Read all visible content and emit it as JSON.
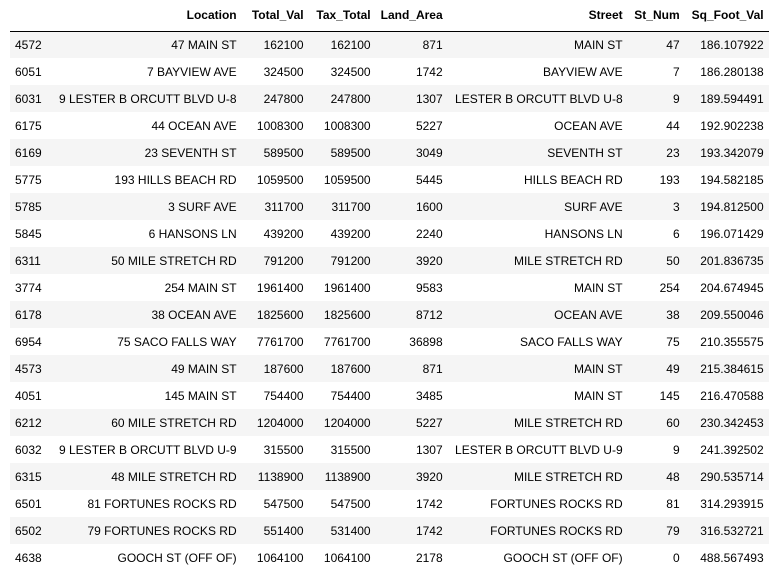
{
  "table": {
    "columns": [
      "",
      "Location",
      "Total_Val",
      "Tax_Total",
      "Land_Area",
      "Street",
      "St_Num",
      "Sq_Foot_Val"
    ],
    "rows": [
      [
        "4572",
        "47 MAIN ST",
        "162100",
        "162100",
        "871",
        "MAIN ST",
        "47",
        "186.107922"
      ],
      [
        "6051",
        "7 BAYVIEW AVE",
        "324500",
        "324500",
        "1742",
        "BAYVIEW AVE",
        "7",
        "186.280138"
      ],
      [
        "6031",
        "9 LESTER B ORCUTT BLVD U-8",
        "247800",
        "247800",
        "1307",
        "LESTER B ORCUTT BLVD U-8",
        "9",
        "189.594491"
      ],
      [
        "6175",
        "44 OCEAN AVE",
        "1008300",
        "1008300",
        "5227",
        "OCEAN AVE",
        "44",
        "192.902238"
      ],
      [
        "6169",
        "23 SEVENTH ST",
        "589500",
        "589500",
        "3049",
        "SEVENTH ST",
        "23",
        "193.342079"
      ],
      [
        "5775",
        "193 HILLS BEACH RD",
        "1059500",
        "1059500",
        "5445",
        "HILLS BEACH RD",
        "193",
        "194.582185"
      ],
      [
        "5785",
        "3 SURF AVE",
        "311700",
        "311700",
        "1600",
        "SURF AVE",
        "3",
        "194.812500"
      ],
      [
        "5845",
        "6 HANSONS LN",
        "439200",
        "439200",
        "2240",
        "HANSONS LN",
        "6",
        "196.071429"
      ],
      [
        "6311",
        "50 MILE STRETCH RD",
        "791200",
        "791200",
        "3920",
        "MILE STRETCH RD",
        "50",
        "201.836735"
      ],
      [
        "3774",
        "254 MAIN ST",
        "1961400",
        "1961400",
        "9583",
        "MAIN ST",
        "254",
        "204.674945"
      ],
      [
        "6178",
        "38 OCEAN AVE",
        "1825600",
        "1825600",
        "8712",
        "OCEAN AVE",
        "38",
        "209.550046"
      ],
      [
        "6954",
        "75 SACO FALLS WAY",
        "7761700",
        "7761700",
        "36898",
        "SACO FALLS WAY",
        "75",
        "210.355575"
      ],
      [
        "4573",
        "49 MAIN ST",
        "187600",
        "187600",
        "871",
        "MAIN ST",
        "49",
        "215.384615"
      ],
      [
        "4051",
        "145 MAIN ST",
        "754400",
        "754400",
        "3485",
        "MAIN ST",
        "145",
        "216.470588"
      ],
      [
        "6212",
        "60 MILE STRETCH RD",
        "1204000",
        "1204000",
        "5227",
        "MILE STRETCH RD",
        "60",
        "230.342453"
      ],
      [
        "6032",
        "9 LESTER B ORCUTT BLVD U-9",
        "315500",
        "315500",
        "1307",
        "LESTER B ORCUTT BLVD U-9",
        "9",
        "241.392502"
      ],
      [
        "6315",
        "48 MILE STRETCH RD",
        "1138900",
        "1138900",
        "3920",
        "MILE STRETCH RD",
        "48",
        "290.535714"
      ],
      [
        "6501",
        "81 FORTUNES ROCKS RD",
        "547500",
        "547500",
        "1742",
        "FORTUNES ROCKS RD",
        "81",
        "314.293915"
      ],
      [
        "6502",
        "79 FORTUNES ROCKS RD",
        "551400",
        "531400",
        "1742",
        "FORTUNES ROCKS RD",
        "79",
        "316.532721"
      ],
      [
        "4638",
        "GOOCH ST (OFF OF)",
        "1064100",
        "1064100",
        "2178",
        "GOOCH ST (OFF OF)",
        "0",
        "488.567493"
      ]
    ]
  }
}
